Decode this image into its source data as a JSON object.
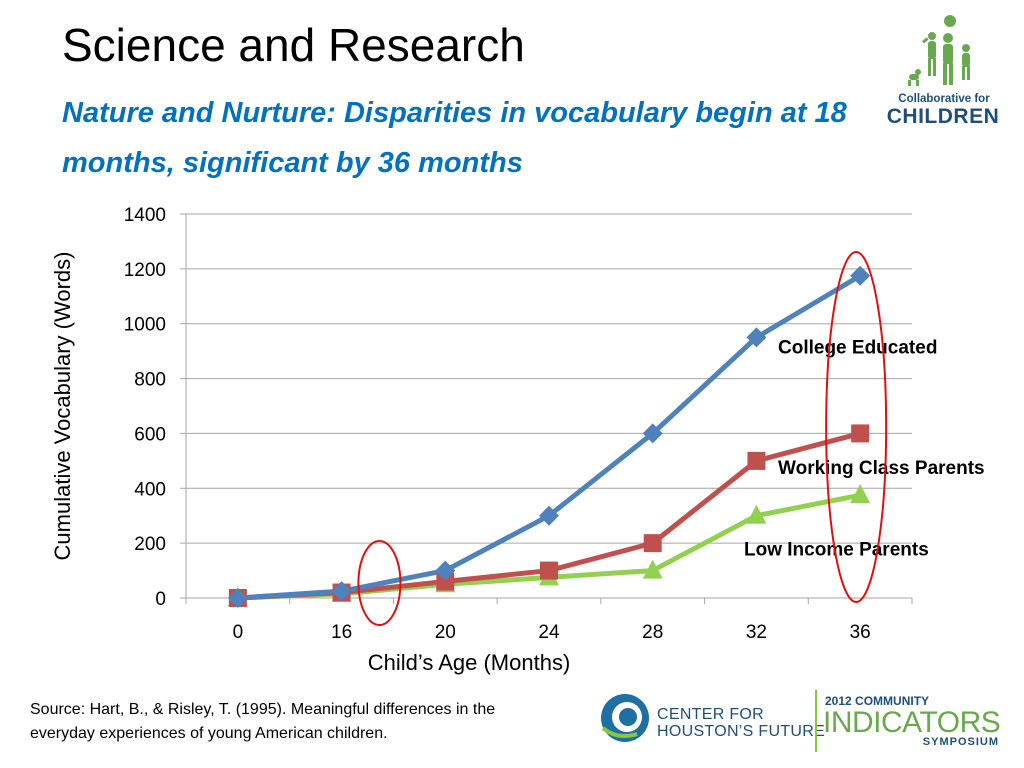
{
  "slide": {
    "title": "Science and Research",
    "subtitle": "Nature and Nurture:  Disparities in vocabulary begin at 18 months, significant by 36 months"
  },
  "logos": {
    "collaborative": {
      "line1": "Collaborative for",
      "line2": "CHILDREN"
    },
    "houston": {
      "line1": "Center for",
      "line2": "Houston’s Future"
    },
    "indicators": {
      "line1": "2012 COMMUNITY",
      "line2": "INDICATORS",
      "line3": "SYMPOSIUM"
    }
  },
  "source": "Source: Hart, B., & Risley, T. (1995). Meaningful differences in the everyday experiences of young American children.",
  "colors": {
    "title_text": "#000000",
    "subtitle_text": "#0070C0",
    "college": "#4F81BD",
    "working": "#C0504D",
    "low": "#92D050",
    "highlight": "#E01010",
    "gridline": "#A6A6A6"
  },
  "chart_data": {
    "type": "line",
    "categories": [
      "0",
      "16",
      "20",
      "24",
      "28",
      "32",
      "36"
    ],
    "xlabel": "Child’s Age (Months)",
    "ylabel": "Cumulative Vocabulary (Words)",
    "ylim": [
      0,
      1400
    ],
    "yticks": [
      0,
      200,
      400,
      600,
      800,
      1000,
      1200,
      1400
    ],
    "grid": true,
    "legend": "none",
    "series": [
      {
        "name": "College Educated",
        "marker": "diamond",
        "color": "#4F81BD",
        "values": [
          0,
          25,
          100,
          300,
          600,
          950,
          1175
        ]
      },
      {
        "name": "Working Class Parents",
        "marker": "square",
        "color": "#C0504D",
        "values": [
          0,
          20,
          60,
          100,
          200,
          500,
          600
        ]
      },
      {
        "name": "Low Income Parents",
        "marker": "triangle",
        "color": "#92D050",
        "values": [
          0,
          15,
          50,
          75,
          100,
          300,
          375
        ]
      }
    ],
    "annotations": [
      {
        "type": "ellipse",
        "around": "x between 16 and 20 (approx. 18 months)"
      },
      {
        "type": "ellipse",
        "around": "x = 36, all series"
      }
    ]
  }
}
